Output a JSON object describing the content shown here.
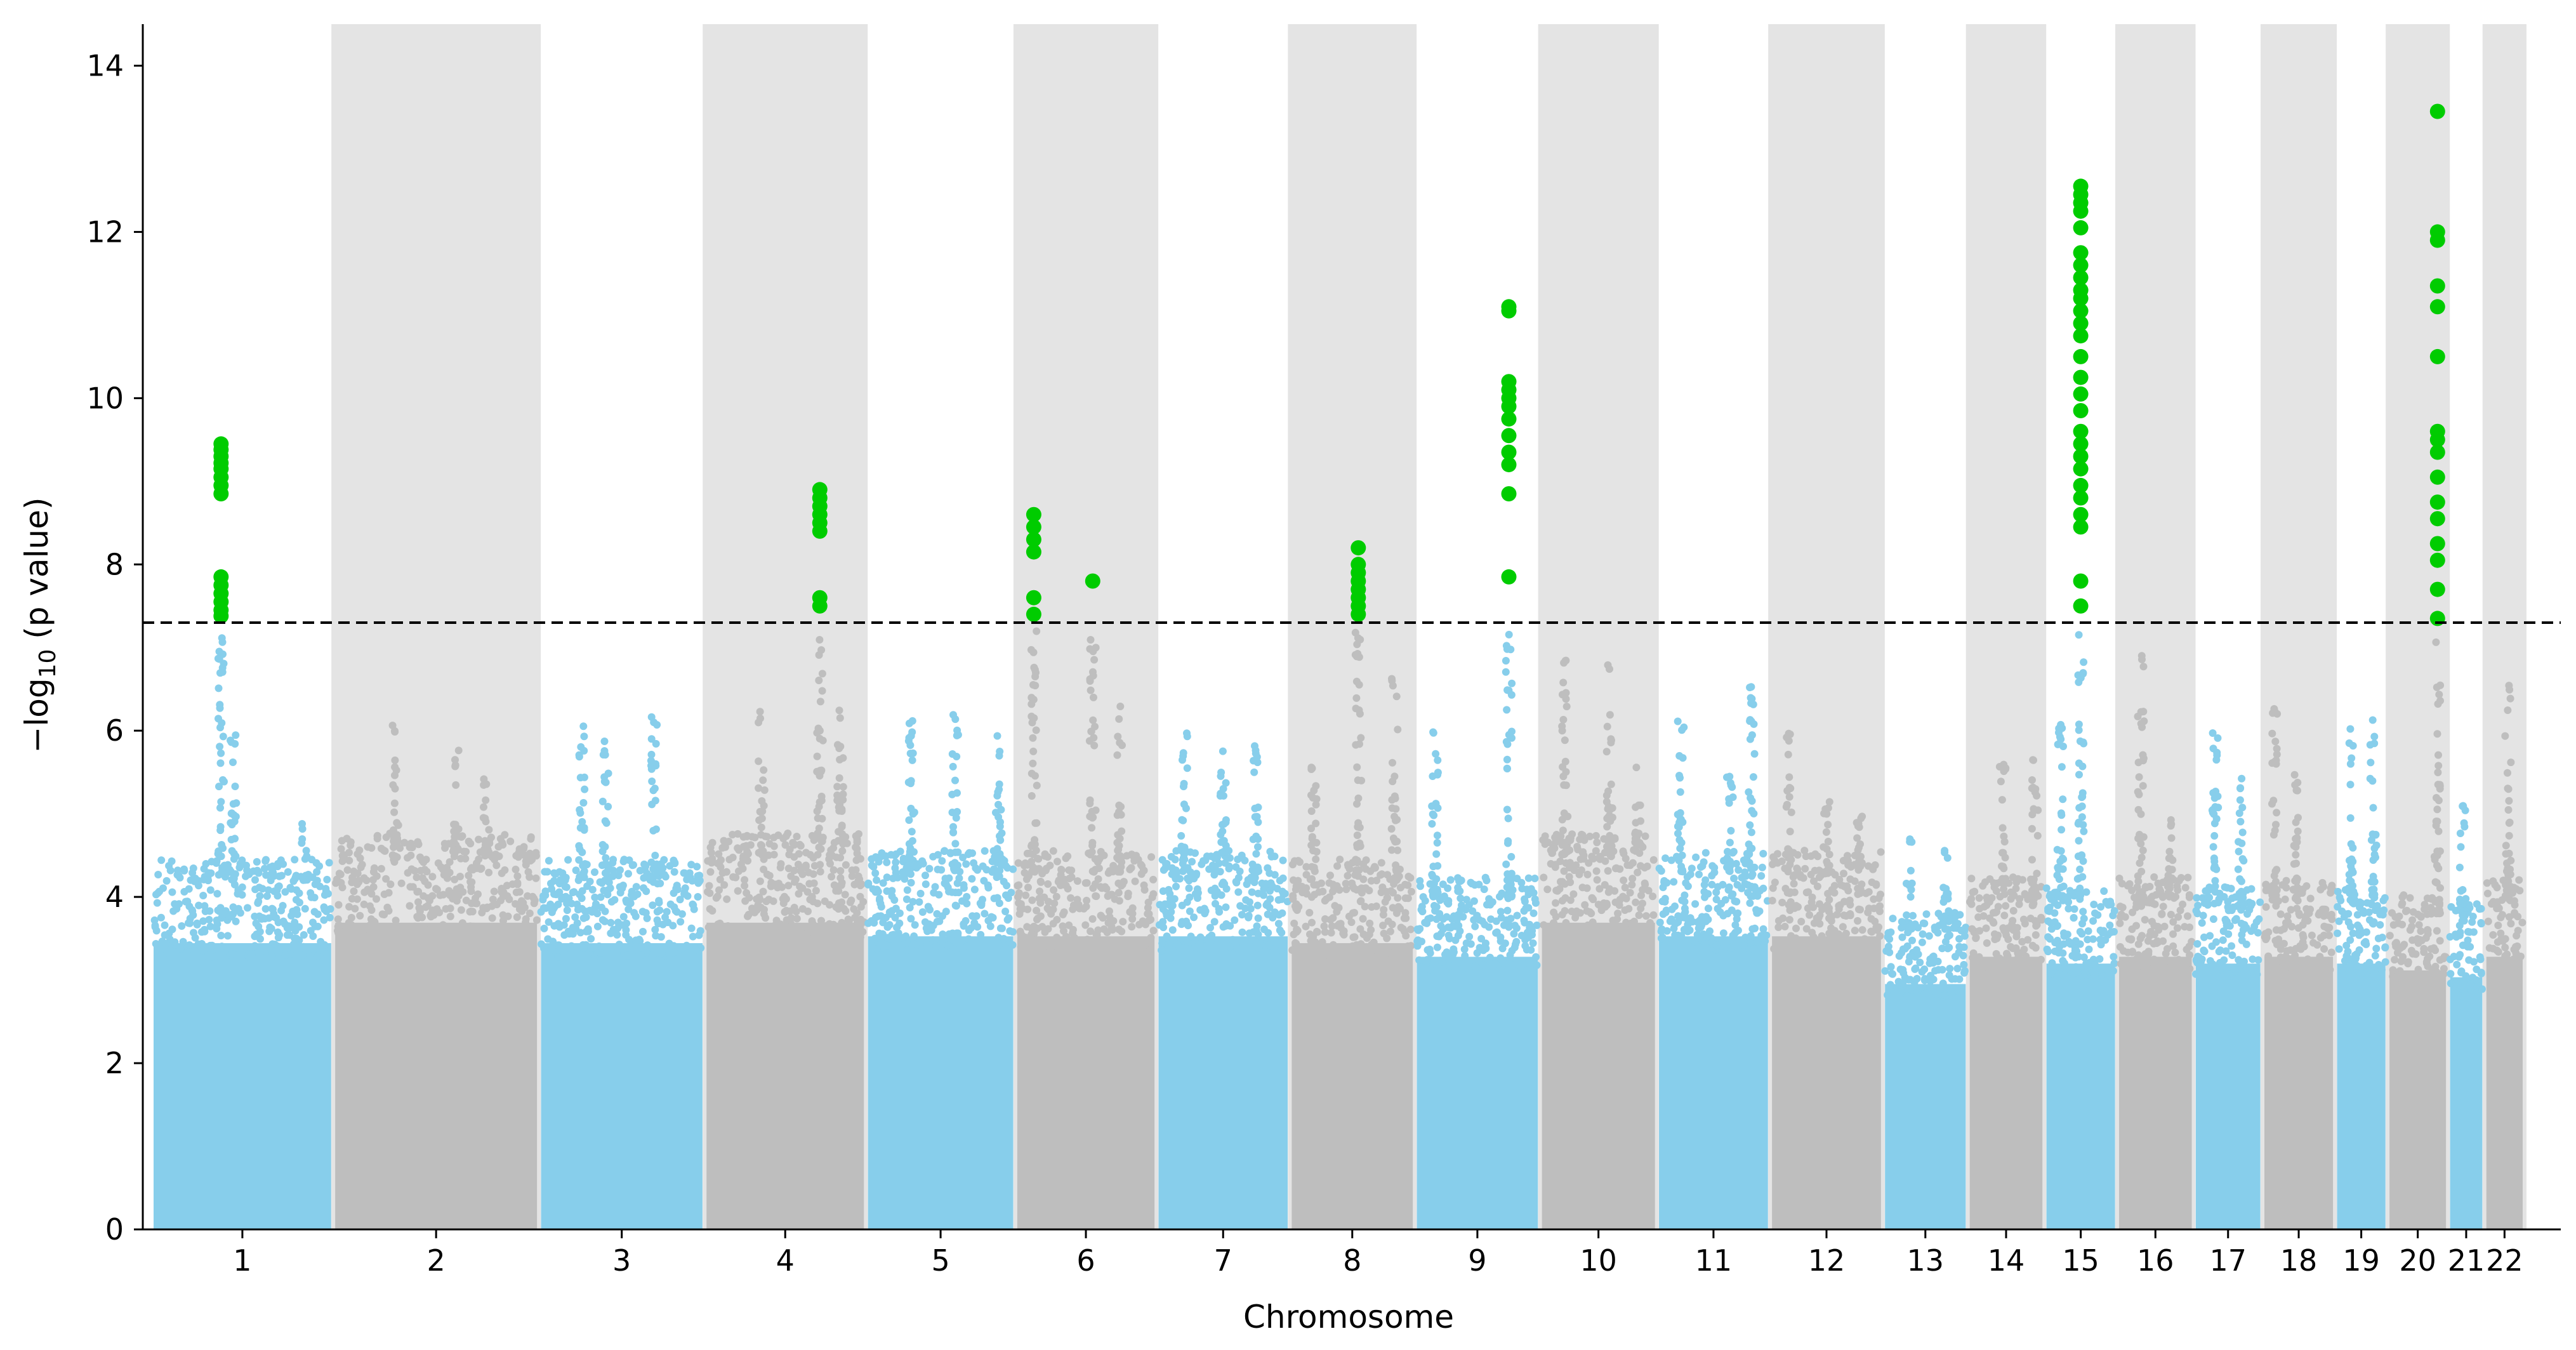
{
  "chart_data": {
    "type": "scatter",
    "subtype": "manhattan",
    "title": "",
    "xlabel": "Chromosome",
    "ylabel_prefix": "−log",
    "ylabel_subscript": "10",
    "ylabel_suffix": " (p value)",
    "ylim": [
      0,
      14.5
    ],
    "yticks": [
      0,
      2,
      4,
      6,
      8,
      10,
      12,
      14
    ],
    "threshold": 7.3,
    "colors": {
      "odd_chromosome": "#87ceeb",
      "even_chromosome": "#bebebe",
      "significant": "#00cc00",
      "band": "#e4e4e4",
      "threshold_line": "#000000"
    },
    "chromosomes": [
      {
        "name": "1",
        "start": 0,
        "end": 220,
        "background_max": 4.2,
        "peaks": [
          {
            "pos": 0.38,
            "max": 9.45,
            "sig": [
              9.45,
              9.38,
              9.3,
              9.22,
              9.15,
              9.05,
              8.95,
              8.85,
              7.85,
              7.75,
              7.65,
              7.55,
              7.45,
              7.38
            ]
          },
          {
            "pos": 0.45,
            "max": 6.2
          },
          {
            "pos": 0.85,
            "max": 5.0
          }
        ]
      },
      {
        "name": "2",
        "start": 225,
        "end": 475,
        "background_max": 4.5,
        "peaks": [
          {
            "pos": 0.3,
            "max": 6.1
          },
          {
            "pos": 0.6,
            "max": 5.8
          },
          {
            "pos": 0.75,
            "max": 5.5
          }
        ]
      },
      {
        "name": "3",
        "start": 480,
        "end": 680,
        "background_max": 4.2,
        "peaks": [
          {
            "pos": 0.25,
            "max": 6.2
          },
          {
            "pos": 0.4,
            "max": 6.0
          },
          {
            "pos": 0.7,
            "max": 6.2
          }
        ]
      },
      {
        "name": "4",
        "start": 685,
        "end": 880,
        "background_max": 4.5,
        "peaks": [
          {
            "pos": 0.35,
            "max": 6.3
          },
          {
            "pos": 0.72,
            "max": 8.9,
            "sig": [
              8.9,
              8.8,
              8.7,
              8.6,
              8.5,
              8.4,
              7.6,
              7.5
            ]
          },
          {
            "pos": 0.85,
            "max": 6.3
          }
        ]
      },
      {
        "name": "5",
        "start": 885,
        "end": 1065,
        "background_max": 4.3,
        "peaks": [
          {
            "pos": 0.3,
            "max": 6.2
          },
          {
            "pos": 0.6,
            "max": 6.2
          },
          {
            "pos": 0.9,
            "max": 6.0
          }
        ]
      },
      {
        "name": "6",
        "start": 1070,
        "end": 1240,
        "background_max": 4.3,
        "peaks": [
          {
            "pos": 0.12,
            "max": 8.6,
            "sig": [
              8.6,
              8.45,
              8.3,
              8.15,
              7.6,
              7.4
            ]
          },
          {
            "pos": 0.55,
            "max": 7.8,
            "sig": [
              7.8
            ]
          },
          {
            "pos": 0.75,
            "max": 6.3
          }
        ]
      },
      {
        "name": "7",
        "start": 1245,
        "end": 1405,
        "background_max": 4.3,
        "peaks": [
          {
            "pos": 0.2,
            "max": 6.0
          },
          {
            "pos": 0.5,
            "max": 5.8
          },
          {
            "pos": 0.75,
            "max": 5.9
          }
        ]
      },
      {
        "name": "8",
        "start": 1410,
        "end": 1560,
        "background_max": 4.2,
        "peaks": [
          {
            "pos": 0.18,
            "max": 5.9
          },
          {
            "pos": 0.55,
            "max": 8.2,
            "sig": [
              8.2,
              8.0,
              7.9,
              7.8,
              7.7,
              7.6,
              7.5,
              7.4
            ]
          },
          {
            "pos": 0.85,
            "max": 6.7
          }
        ]
      },
      {
        "name": "9",
        "start": 1565,
        "end": 1715,
        "background_max": 4.0,
        "peaks": [
          {
            "pos": 0.15,
            "max": 6.2
          },
          {
            "pos": 0.76,
            "max": 11.1,
            "sig": [
              11.1,
              11.05,
              10.2,
              10.1,
              10.0,
              9.9,
              9.75,
              9.55,
              9.35,
              9.2,
              8.85,
              7.85
            ]
          }
        ]
      },
      {
        "name": "10",
        "start": 1720,
        "end": 1860,
        "background_max": 4.5,
        "peaks": [
          {
            "pos": 0.2,
            "max": 6.9
          },
          {
            "pos": 0.6,
            "max": 7.1
          },
          {
            "pos": 0.85,
            "max": 5.7
          }
        ]
      },
      {
        "name": "11",
        "start": 1865,
        "end": 2000,
        "background_max": 4.3,
        "peaks": [
          {
            "pos": 0.2,
            "max": 6.3
          },
          {
            "pos": 0.65,
            "max": 5.5
          },
          {
            "pos": 0.85,
            "max": 6.6
          }
        ]
      },
      {
        "name": "12",
        "start": 2005,
        "end": 2140,
        "background_max": 4.3,
        "peaks": [
          {
            "pos": 0.15,
            "max": 6.1
          },
          {
            "pos": 0.5,
            "max": 5.4
          },
          {
            "pos": 0.8,
            "max": 5.2
          }
        ]
      },
      {
        "name": "13",
        "start": 2145,
        "end": 2245,
        "background_max": 3.6,
        "peaks": [
          {
            "pos": 0.3,
            "max": 4.7
          },
          {
            "pos": 0.75,
            "max": 5.0
          }
        ]
      },
      {
        "name": "14",
        "start": 2250,
        "end": 2340,
        "background_max": 4.0,
        "peaks": [
          {
            "pos": 0.45,
            "max": 5.6
          },
          {
            "pos": 0.9,
            "max": 5.7
          }
        ]
      },
      {
        "name": "15",
        "start": 2345,
        "end": 2430,
        "background_max": 3.9,
        "peaks": [
          {
            "pos": 0.2,
            "max": 6.1
          },
          {
            "pos": 0.5,
            "max": 12.55,
            "sig": [
              12.55,
              12.45,
              12.35,
              12.25,
              12.05,
              11.75,
              11.6,
              11.45,
              11.3,
              11.2,
              11.05,
              10.9,
              10.75,
              10.5,
              10.25,
              10.05,
              9.85,
              9.6,
              9.45,
              9.3,
              9.15,
              8.95,
              8.8,
              8.6,
              8.45,
              7.8,
              7.5
            ]
          }
        ]
      },
      {
        "name": "16",
        "start": 2435,
        "end": 2525,
        "background_max": 4.0,
        "peaks": [
          {
            "pos": 0.3,
            "max": 6.95
          },
          {
            "pos": 0.7,
            "max": 5.0
          }
        ]
      },
      {
        "name": "17",
        "start": 2530,
        "end": 2610,
        "background_max": 3.9,
        "peaks": [
          {
            "pos": 0.3,
            "max": 6.2
          },
          {
            "pos": 0.7,
            "max": 5.5
          }
        ]
      },
      {
        "name": "18",
        "start": 2615,
        "end": 2700,
        "background_max": 4.0,
        "peaks": [
          {
            "pos": 0.15,
            "max": 6.5
          },
          {
            "pos": 0.45,
            "max": 6.0
          }
        ]
      },
      {
        "name": "19",
        "start": 2705,
        "end": 2765,
        "background_max": 3.9,
        "peaks": [
          {
            "pos": 0.3,
            "max": 6.1
          },
          {
            "pos": 0.75,
            "max": 6.2
          }
        ]
      },
      {
        "name": "20",
        "start": 2770,
        "end": 2840,
        "background_max": 3.8,
        "peaks": [
          {
            "pos": 0.85,
            "max": 13.45,
            "sig": [
              13.45,
              12.0,
              11.9,
              11.35,
              11.1,
              10.5,
              9.6,
              9.5,
              9.35,
              9.05,
              8.75,
              8.55,
              8.25,
              8.05,
              7.7,
              7.35
            ]
          }
        ]
      },
      {
        "name": "21",
        "start": 2845,
        "end": 2885,
        "background_max": 3.7,
        "peaks": [
          {
            "pos": 0.4,
            "max": 5.1
          }
        ]
      },
      {
        "name": "22",
        "start": 2890,
        "end": 2935,
        "background_max": 4.0,
        "peaks": [
          {
            "pos": 0.6,
            "max": 6.8
          }
        ]
      }
    ]
  }
}
